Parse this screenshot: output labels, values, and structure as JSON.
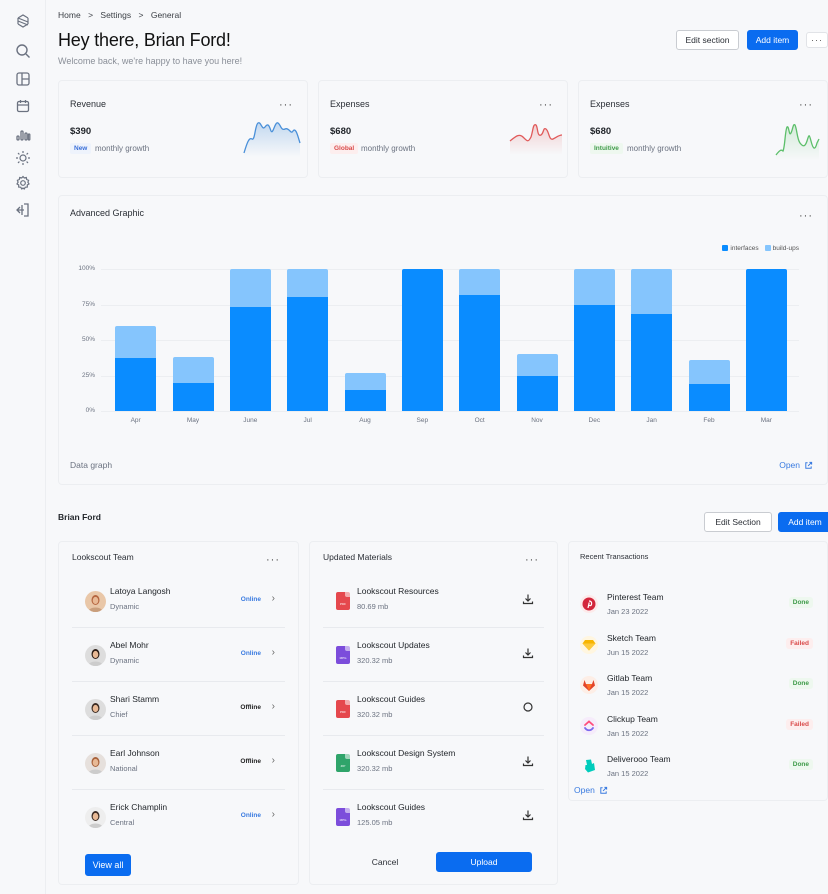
{
  "sidebar": {
    "items": [
      {
        "name": "logo-icon"
      },
      {
        "name": "search-icon"
      },
      {
        "name": "layout-icon"
      },
      {
        "name": "calendar-icon"
      },
      {
        "name": "chart-icon"
      },
      {
        "name": "sun-icon"
      },
      {
        "name": "settings-icon"
      },
      {
        "name": "logout-icon"
      }
    ]
  },
  "breadcrumb": [
    "Home",
    ">",
    "Settings",
    ">",
    "General"
  ],
  "header": {
    "title": "Hey there, Brian Ford!",
    "subtitle": "Welcome back, we're happy to have you here!",
    "edit_label": "Edit section",
    "add_label": "Add item",
    "more_label": "···"
  },
  "stats": [
    {
      "title": "Revenue",
      "value": "$390",
      "badge": "New",
      "note": "monthly growth",
      "color": "#4a90d9",
      "badge_color": "#3a6fd8",
      "badge_bg": "#eef3fc"
    },
    {
      "title": "Expenses",
      "value": "$680",
      "badge": "Global",
      "note": "monthly growth",
      "color": "#e05a5a",
      "badge_color": "#d94a4a",
      "badge_bg": "#fdeeee"
    },
    {
      "title": "Expenses",
      "value": "$680",
      "badge": "Intuitive",
      "note": "monthly growth",
      "color": "#5cbf6a",
      "badge_color": "#3f9b4a",
      "badge_bg": "#eef8ef"
    }
  ],
  "chart_card": {
    "title": "Advanced Graphic",
    "footer_label": "Data graph",
    "open_label": "Open"
  },
  "chart_data": {
    "type": "bar",
    "stacked": true,
    "title": "Advanced Graphic",
    "categories": [
      "Apr",
      "May",
      "June",
      "Jul",
      "Aug",
      "Sep",
      "Oct",
      "Nov",
      "Dec",
      "Jan",
      "Feb",
      "Mar"
    ],
    "series": [
      {
        "name": "interfaces",
        "color": "#0a8cff",
        "values": [
          37,
          20,
          73,
          80,
          15,
          100,
          82,
          25,
          75,
          68,
          19,
          100
        ]
      },
      {
        "name": "build-ups",
        "color": "#85c5fd",
        "values": [
          23,
          18,
          27,
          20,
          12,
          0,
          18,
          15,
          25,
          32,
          17,
          0
        ]
      }
    ],
    "yticks": [
      "0%",
      "25%",
      "50%",
      "75%",
      "100%"
    ],
    "ylim": [
      0,
      100
    ],
    "xlabel": "",
    "ylabel": "",
    "grid": true,
    "legend_position": "top-right"
  },
  "section": {
    "name": "Brian Ford",
    "edit_label": "Edit Section",
    "add_label": "Add item"
  },
  "team": {
    "title": "Lookscout Team",
    "members": [
      {
        "name": "Latoya Langosh",
        "role": "Dynamic",
        "status": "Online"
      },
      {
        "name": "Abel Mohr",
        "role": "Dynamic",
        "status": "Online"
      },
      {
        "name": "Shari Stamm",
        "role": "Chief",
        "status": "Offline"
      },
      {
        "name": "Earl Johnson",
        "role": "National",
        "status": "Offline"
      },
      {
        "name": "Erick Champlin",
        "role": "Central",
        "status": "Online"
      }
    ],
    "view_all_label": "View all"
  },
  "materials": {
    "title": "Updated Materials",
    "files": [
      {
        "name": "Lookscout Resources",
        "size": "80.69 mb",
        "type": "PDF",
        "color": "#e5484d",
        "action": "download"
      },
      {
        "name": "Lookscout Updates",
        "size": "320.32 mb",
        "type": "MPG",
        "color": "#7c4ddb",
        "action": "download"
      },
      {
        "name": "Lookscout Guides",
        "size": "320.32 mb",
        "type": "PDF",
        "color": "#e5484d",
        "action": "loading"
      },
      {
        "name": "Lookscout Design System",
        "size": "320.32 mb",
        "type": "ZIP",
        "color": "#2fa46a",
        "action": "download"
      },
      {
        "name": "Lookscout Guides",
        "size": "125.05 mb",
        "type": "MPG",
        "color": "#7c4ddb",
        "action": "download"
      }
    ],
    "cancel_label": "Cancel",
    "upload_label": "Upload"
  },
  "transactions": {
    "title": "Recent Transactions",
    "items": [
      {
        "name": "Pinterest Team",
        "date": "Jan 23 2022",
        "status": "Done"
      },
      {
        "name": "Sketch Team",
        "date": "Jun 15 2022",
        "status": "Failed"
      },
      {
        "name": "Gitlab Team",
        "date": "Jan 15 2022",
        "status": "Done"
      },
      {
        "name": "Clickup Team",
        "date": "Jan 15 2022",
        "status": "Failed"
      },
      {
        "name": "Deliverooo Team",
        "date": "Jan 15 2022",
        "status": "Done"
      }
    ],
    "open_label": "Open"
  },
  "colors": {
    "primary": "#0a6cf0",
    "online": "#3a7be0",
    "offline": "#222222",
    "done": "#3f9b4a",
    "done_bg": "#eef8ef",
    "failed": "#d94a4a",
    "failed_bg": "#fdeeee"
  }
}
